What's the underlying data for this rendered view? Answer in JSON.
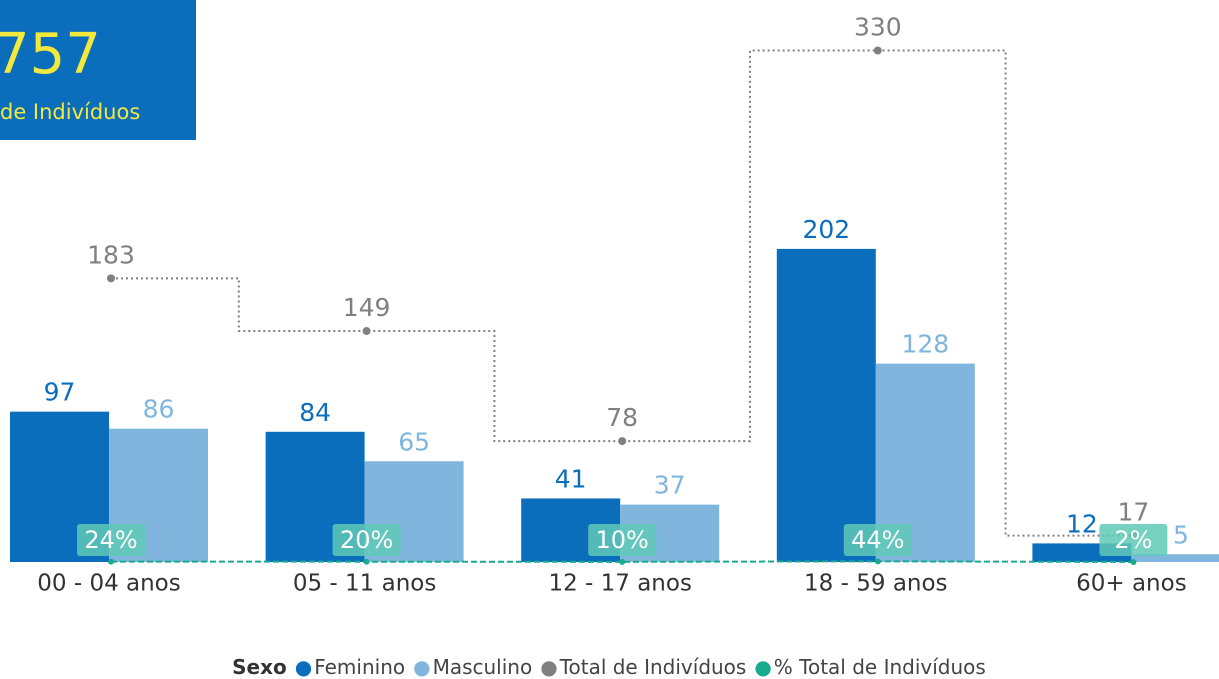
{
  "card": {
    "value": 757,
    "label": "de Indivíduos"
  },
  "chart_data": {
    "type": "bar",
    "categories": [
      "00 - 04 anos",
      "05 - 11 anos",
      "12 - 17 anos",
      "18 - 59 anos",
      "60+ anos"
    ],
    "series": [
      {
        "name": "Feminino",
        "color": "#0a6ebd",
        "values": [
          97,
          84,
          41,
          202,
          12
        ]
      },
      {
        "name": "Masculino",
        "color": "#80b6dd",
        "values": [
          86,
          65,
          37,
          128,
          5
        ]
      },
      {
        "name": "Total de Indivíduos",
        "type": "line",
        "color": "#808080",
        "values": [
          183,
          149,
          78,
          330,
          17
        ]
      },
      {
        "name": "% Total de Indivíduos",
        "type": "line",
        "color": "#1aab8f",
        "values": [
          0.24,
          0.2,
          0.1,
          0.44,
          0.02
        ],
        "value_labels": [
          "24%",
          "20%",
          "10%",
          "44%",
          "2%"
        ]
      }
    ],
    "ylim": [
      0,
      360
    ],
    "legend_title": "Sexo",
    "legend": "bottom"
  }
}
